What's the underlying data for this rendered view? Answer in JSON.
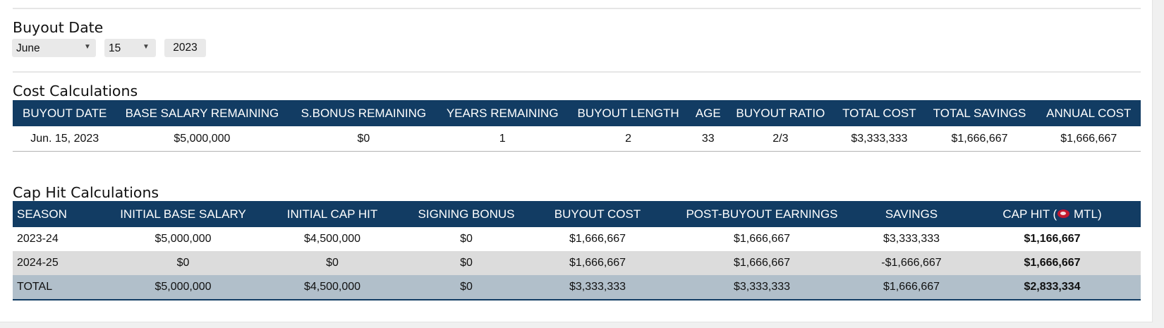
{
  "buyout_date": {
    "heading": "Buyout Date",
    "month": "June",
    "day": "15",
    "year": "2023"
  },
  "cost_calculations": {
    "heading": "Cost Calculations",
    "columns": [
      "BUYOUT DATE",
      "BASE SALARY REMAINING",
      "S.BONUS REMAINING",
      "YEARS REMAINING",
      "BUYOUT LENGTH",
      "AGE",
      "BUYOUT RATIO",
      "TOTAL COST",
      "TOTAL SAVINGS",
      "ANNUAL COST"
    ],
    "row": [
      "Jun. 15, 2023",
      "$5,000,000",
      "$0",
      "1",
      "2",
      "33",
      "2/3",
      "$3,333,333",
      "$1,666,667",
      "$1,666,667"
    ]
  },
  "cap_hit_calculations": {
    "heading": "Cap Hit Calculations",
    "columns": [
      "SEASON",
      "INITIAL BASE SALARY",
      "INITIAL CAP HIT",
      "SIGNING BONUS",
      "BUYOUT COST",
      "POST-BUYOUT EARNINGS",
      "SAVINGS"
    ],
    "cap_hit_prefix": "CAP HIT (",
    "cap_hit_team": "MTL)",
    "rows": [
      [
        "2023-24",
        "$5,000,000",
        "$4,500,000",
        "$0",
        "$1,666,667",
        "$1,666,667",
        "$3,333,333",
        "$1,166,667"
      ],
      [
        "2024-25",
        "$0",
        "$0",
        "$0",
        "$1,666,667",
        "$1,666,667",
        "-$1,666,667",
        "$1,666,667"
      ],
      [
        "TOTAL",
        "$5,000,000",
        "$4,500,000",
        "$0",
        "$3,333,333",
        "$3,333,333",
        "$1,666,667",
        "$2,833,334"
      ]
    ],
    "team_icon": "montreal-canadiens-logo-icon"
  }
}
